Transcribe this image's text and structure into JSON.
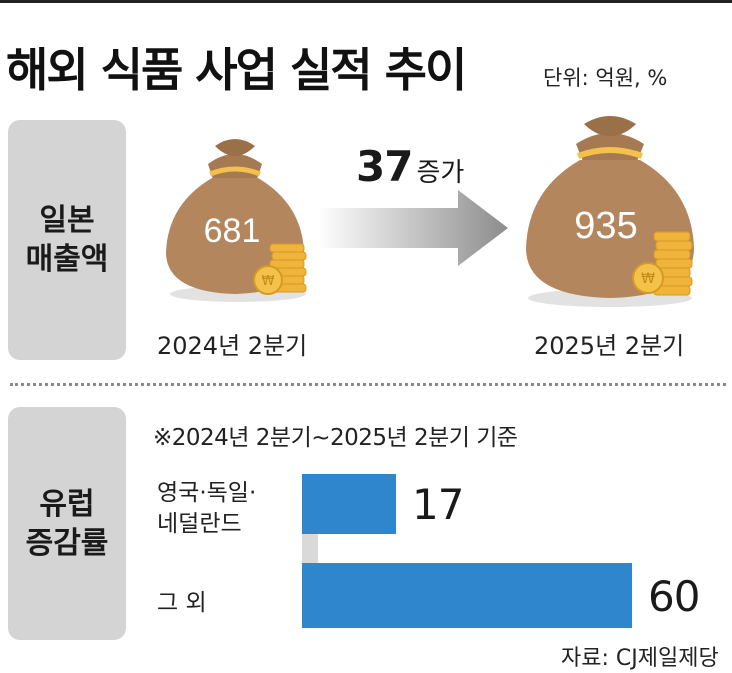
{
  "title": "해외 식품 사업 실적 추이",
  "unit": "단위: 억원, %",
  "japan": {
    "label_line1": "일본",
    "label_line2": "매출액",
    "before": {
      "value": "681",
      "period": "2024년 2분기"
    },
    "after": {
      "value": "935",
      "period": "2025년 2분기"
    },
    "increase_value": "37",
    "increase_word": "증가"
  },
  "europe": {
    "label_line1": "유럽",
    "label_line2": "증감률",
    "basis": "※2024년 2분기~2025년 2분기 기준"
  },
  "chart_data": {
    "type": "bar",
    "orientation": "horizontal",
    "categories": [
      "영국·독일·네덜란드",
      "그 외"
    ],
    "category_lines": [
      [
        "영국·독일·",
        "네덜란드"
      ],
      [
        "그 외"
      ]
    ],
    "values": [
      17,
      60
    ],
    "value_labels": [
      "17",
      "60"
    ],
    "xlim": [
      0,
      60
    ],
    "bar_color": "#2f86cc"
  },
  "colors": {
    "bag": "#b3865d",
    "coin": "#f0b43a",
    "bar": "#2f86cc",
    "side_box": "#d4d4d4"
  },
  "source": "자료: CJ제일제당"
}
